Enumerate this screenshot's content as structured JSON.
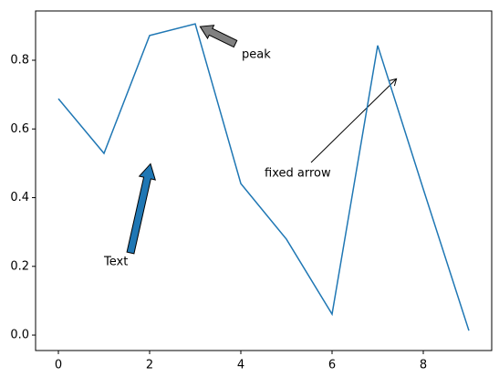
{
  "chart_data": {
    "type": "line",
    "x": [
      0,
      1,
      2,
      3,
      4,
      5,
      6,
      7,
      8,
      9
    ],
    "series": [
      {
        "color": "#1f77b4",
        "values": [
          0.688,
          0.529,
          0.872,
          0.906,
          0.441,
          0.279,
          0.061,
          0.843,
          0.425,
          0.013
        ]
      }
    ],
    "xlim": [
      -0.5,
      9.5
    ],
    "ylim": [
      -0.045,
      0.9435
    ],
    "xticks": [
      0,
      2,
      4,
      6,
      8
    ],
    "yticks": [
      {
        "value": 0,
        "label": "0.0"
      },
      0.2,
      0.4,
      0.6,
      0.8
    ],
    "annotations": [
      "peak",
      "Text",
      "fixed arrow"
    ]
  }
}
